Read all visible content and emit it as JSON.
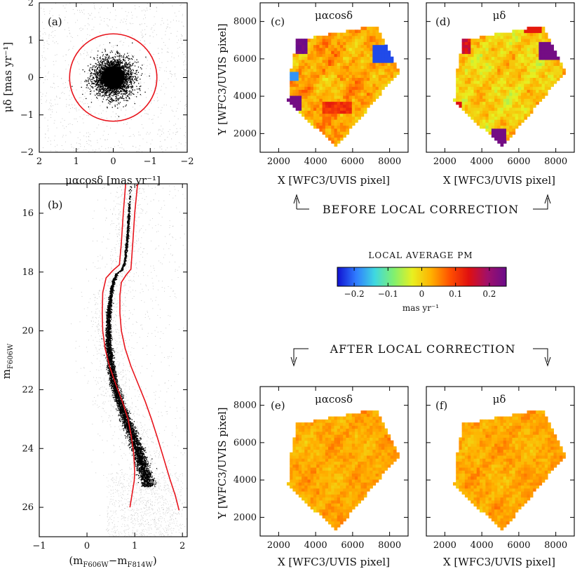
{
  "chart_data": [
    {
      "id": "a",
      "type": "scatter",
      "panel_label": "(a)",
      "xlabel": "μαcosδ [mas yr⁻¹]",
      "ylabel": "μδ [mas yr⁻¹]",
      "xlim": [
        2,
        -2
      ],
      "ylim": [
        -2,
        2
      ],
      "xticks": [
        "2",
        "1",
        "0",
        "−1",
        "−2"
      ],
      "yticks": [
        "−2",
        "−1",
        "0",
        "1",
        "2"
      ],
      "selection_circle": {
        "center": [
          0,
          0
        ],
        "radius_mas_yr": 1.18,
        "color": "#e8141c"
      },
      "points_description": "dense core at (0,0), dispersion ~0.25 mas/yr; sparse field stars"
    },
    {
      "id": "b",
      "type": "scatter",
      "panel_label": "(b)",
      "xlabel_main": "(m",
      "xlabel_sub1": "F606W",
      "xlabel_mid": "−m",
      "xlabel_sub2": "F814W",
      "xlabel_end": ")",
      "ylabel_main": "m",
      "ylabel_sub": "F606W",
      "xlim": [
        -1,
        2.1
      ],
      "ylim": [
        27,
        15
      ],
      "xticks": [
        "−1",
        "0",
        "1",
        "2"
      ],
      "yticks": [
        "16",
        "18",
        "20",
        "22",
        "24",
        "26"
      ],
      "ridge_line": {
        "color": [
          0.92,
          0.88,
          0.84,
          0.79,
          0.72,
          0.63,
          0.56,
          0.5,
          0.46,
          0.45,
          0.46,
          0.5,
          0.57,
          0.68,
          0.82,
          0.97,
          1.08,
          1.17,
          1.24,
          1.29
        ],
        "mag": [
          15.0,
          16.0,
          17.0,
          17.7,
          17.95,
          18.05,
          18.3,
          18.8,
          19.4,
          20.0,
          20.6,
          21.2,
          21.8,
          22.4,
          23.0,
          23.6,
          24.1,
          24.6,
          25.0,
          25.3
        ]
      },
      "left_boundary": {
        "color": [
          0.81,
          0.76,
          0.72,
          0.68,
          0.54,
          0.4,
          0.33,
          0.32,
          0.33,
          0.38,
          0.47,
          0.6,
          0.74,
          0.86,
          0.93,
          0.98,
          1.0,
          0.99,
          0.95,
          0.9
        ],
        "mag": [
          15.0,
          16.0,
          17.0,
          17.75,
          17.95,
          18.2,
          18.7,
          19.4,
          20.0,
          20.6,
          21.2,
          21.8,
          22.4,
          23.0,
          23.6,
          24.2,
          24.8,
          25.1,
          25.5,
          26.0
        ]
      },
      "right_boundary": {
        "color": [
          1.06,
          1.0,
          0.96,
          0.92,
          0.82,
          0.72,
          0.69,
          0.69,
          0.72,
          0.8,
          0.92,
          1.07,
          1.22,
          1.35,
          1.47,
          1.6,
          1.73,
          1.85,
          1.93
        ],
        "mag": [
          15.0,
          16.0,
          17.0,
          17.9,
          18.1,
          18.35,
          18.8,
          19.4,
          20.0,
          20.6,
          21.2,
          21.8,
          22.4,
          23.0,
          23.6,
          24.3,
          25.0,
          25.6,
          26.1
        ]
      },
      "boundary_color": "#e8141c"
    },
    {
      "id": "c",
      "type": "heatmap",
      "panel_label": "(c)",
      "title_main": "μαcosδ",
      "ylabel": "Y [WFC3/UVIS pixel]",
      "xlabel": "X [WFC3/UVIS pixel]",
      "xticks": [
        "2000",
        "4000",
        "6000",
        "8000"
      ],
      "yticks": [
        "2000",
        "4000",
        "6000",
        "8000"
      ],
      "state": "before local correction"
    },
    {
      "id": "d",
      "type": "heatmap",
      "panel_label": "(d)",
      "title_main": "μδ",
      "xlabel": "X [WFC3/UVIS pixel]",
      "xticks": [
        "2000",
        "4000",
        "6000",
        "8000"
      ],
      "state": "before local correction"
    },
    {
      "id": "e",
      "type": "heatmap",
      "panel_label": "(e)",
      "title_main": "μαcosδ",
      "ylabel": "Y [WFC3/UVIS pixel]",
      "xlabel": "X [WFC3/UVIS pixel]",
      "xticks": [
        "2000",
        "4000",
        "6000",
        "8000"
      ],
      "yticks": [
        "2000",
        "4000",
        "6000",
        "8000"
      ],
      "state": "after local correction"
    },
    {
      "id": "f",
      "type": "heatmap",
      "panel_label": "(f)",
      "title_main": "μδ",
      "xlabel": "X [WFC3/UVIS pixel]",
      "xticks": [
        "2000",
        "4000",
        "6000",
        "8000"
      ],
      "state": "after local correction"
    }
  ],
  "figure": {
    "before_label": "BEFORE LOCAL CORRECTION",
    "after_label": "AFTER LOCAL CORRECTION",
    "colorbar": {
      "title": "LOCAL AVERAGE PM",
      "unit": "mas yr⁻¹",
      "range": [
        -0.25,
        0.25
      ],
      "ticks": [
        "−0.2",
        "−0.1",
        "0",
        "0.1",
        "0.2"
      ],
      "tick_values": [
        -0.2,
        -0.1,
        0,
        0.1,
        0.2
      ],
      "colors": [
        "#1010d0",
        "#2f7cff",
        "#3fd8e0",
        "#80f070",
        "#e8f020",
        "#ffb000",
        "#ff5000",
        "#e01010",
        "#a0106a",
        "#6a0c8a"
      ]
    }
  }
}
